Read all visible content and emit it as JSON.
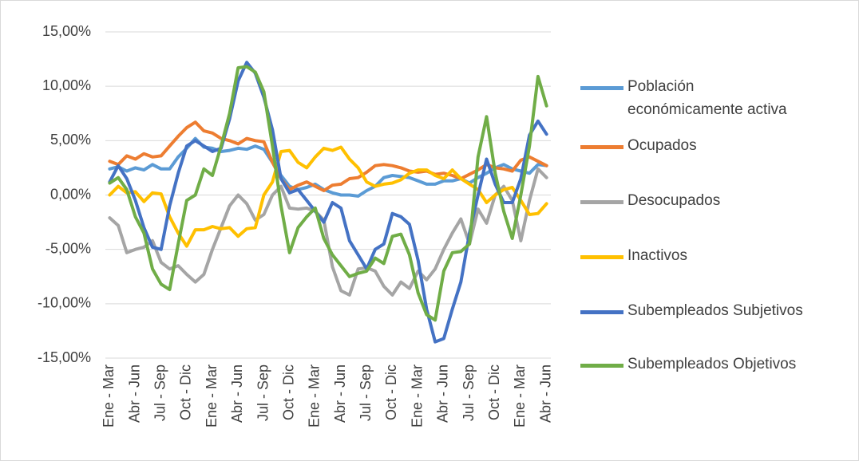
{
  "chart_data": {
    "type": "line",
    "categories": [
      "Ene - Mar",
      null,
      null,
      "Abr - Jun",
      null,
      null,
      "Jul - Sep",
      null,
      null,
      "Oct - Dic",
      null,
      null,
      "Ene - Mar",
      null,
      null,
      "Abr - Jun",
      null,
      null,
      "Jul - Sep",
      null,
      null,
      "Oct - Dic",
      null,
      null,
      "Ene - Mar",
      null,
      null,
      "Abr - Jun",
      null,
      null,
      "Jul - Sep",
      null,
      null,
      "Oct - Dic",
      null,
      null,
      "Ene - Mar",
      null,
      null,
      "Abr - Jun",
      null,
      null,
      "Jul - Sep",
      null,
      null,
      "Oct - Dic",
      null,
      null,
      "Ene - Mar",
      null,
      null,
      "Abr - Jun"
    ],
    "ylim": [
      -15,
      15
    ],
    "yticks": [
      {
        "value": -15,
        "label": "-15,00%"
      },
      {
        "value": -10,
        "label": "-10,00%"
      },
      {
        "value": -5,
        "label": "-5,00%"
      },
      {
        "value": 0,
        "label": "0,00%"
      },
      {
        "value": 5,
        "label": "5,00%"
      },
      {
        "value": 10,
        "label": "10,00%"
      },
      {
        "value": 15,
        "label": "15,00%"
      }
    ],
    "grid": true,
    "series": [
      {
        "name": "Población económicamente activa",
        "color": "#5b9bd5",
        "values": [
          2.4,
          2.6,
          2.2,
          2.5,
          2.3,
          2.8,
          2.4,
          2.4,
          3.5,
          4.3,
          5.2,
          4.4,
          4.3,
          4.0,
          4.1,
          4.3,
          4.2,
          4.5,
          4.2,
          3.0,
          1.8,
          0.8,
          0.5,
          0.7,
          1.0,
          0.5,
          0.2,
          0.0,
          0.0,
          -0.1,
          0.4,
          0.8,
          1.6,
          1.8,
          1.7,
          1.6,
          1.3,
          1.0,
          1.0,
          1.3,
          1.3,
          1.5,
          1.1,
          1.6,
          2.0,
          2.5,
          2.8,
          2.4,
          2.2,
          2.0,
          2.8,
          2.7
        ]
      },
      {
        "name": "Ocupados",
        "color": "#ed7d31",
        "values": [
          3.1,
          2.8,
          3.6,
          3.3,
          3.8,
          3.5,
          3.6,
          4.5,
          5.4,
          6.2,
          6.7,
          5.9,
          5.7,
          5.2,
          5.0,
          4.7,
          5.2,
          5.0,
          4.9,
          3.0,
          1.5,
          0.5,
          0.9,
          1.2,
          0.8,
          0.4,
          0.9,
          1.0,
          1.5,
          1.6,
          2.1,
          2.7,
          2.8,
          2.7,
          2.5,
          2.2,
          2.1,
          2.2,
          1.9,
          2.0,
          1.8,
          1.5,
          1.9,
          2.3,
          2.8,
          2.5,
          2.4,
          2.2,
          3.2,
          3.5,
          3.1,
          2.7
        ]
      },
      {
        "name": "Desocupados",
        "color": "#a5a5a5",
        "values": [
          -2.1,
          -2.8,
          -5.3,
          -5.0,
          -4.8,
          -4.2,
          -6.2,
          -6.8,
          -6.5,
          -7.3,
          -8.0,
          -7.3,
          -5.0,
          -3.0,
          -1.0,
          0.0,
          -0.8,
          -2.3,
          -1.8,
          0.0,
          0.8,
          -1.2,
          -1.3,
          -1.2,
          -1.5,
          -2.3,
          -6.6,
          -8.8,
          -9.2,
          -6.8,
          -6.7,
          -7.0,
          -8.4,
          -9.2,
          -8.0,
          -8.6,
          -7.0,
          -7.8,
          -6.8,
          -5.0,
          -3.5,
          -2.2,
          -4.5,
          -1.3,
          -2.6,
          0.0,
          0.8,
          -0.5,
          -4.2,
          -0.5,
          2.4,
          1.6
        ]
      },
      {
        "name": "Inactivos",
        "color": "#ffc000",
        "values": [
          0.0,
          0.8,
          0.2,
          0.3,
          -0.6,
          0.2,
          0.1,
          -2.0,
          -3.5,
          -4.7,
          -3.2,
          -3.2,
          -2.9,
          -3.1,
          -3.0,
          -3.8,
          -3.1,
          -3.0,
          0.0,
          1.2,
          4.0,
          4.1,
          3.0,
          2.5,
          3.5,
          4.3,
          4.1,
          4.4,
          3.3,
          2.5,
          1.2,
          0.8,
          1.0,
          1.1,
          1.4,
          2.0,
          2.3,
          2.3,
          1.8,
          1.5,
          2.3,
          1.5,
          1.0,
          0.5,
          -0.7,
          0.0,
          0.5,
          0.7,
          -0.5,
          -1.8,
          -1.7,
          -0.8
        ]
      },
      {
        "name": "Subempleados Subjetivos",
        "color": "#4472c4",
        "values": [
          1.2,
          2.7,
          1.5,
          -0.5,
          -3.0,
          -4.8,
          -5.0,
          -1.0,
          2.0,
          4.5,
          5.0,
          4.5,
          4.0,
          4.3,
          7.0,
          10.5,
          12.2,
          11.2,
          9.0,
          6.0,
          1.5,
          0.2,
          0.5,
          -0.5,
          -1.5,
          -2.5,
          -0.7,
          -1.2,
          -4.2,
          -5.5,
          -6.8,
          -5.0,
          -4.5,
          -1.7,
          -2.0,
          -2.7,
          -6.0,
          -10.5,
          -13.5,
          -13.2,
          -10.5,
          -8.0,
          -3.5,
          0.0,
          3.3,
          1.0,
          -0.7,
          -0.7,
          1.5,
          5.5,
          6.8,
          5.6
        ]
      },
      {
        "name": "Subempleados Objetivos",
        "color": "#70ad47",
        "values": [
          1.1,
          1.6,
          0.5,
          -2.0,
          -3.5,
          -6.8,
          -8.2,
          -8.7,
          -4.5,
          -0.5,
          0.0,
          2.4,
          1.8,
          4.5,
          7.5,
          11.7,
          11.8,
          11.3,
          9.5,
          4.5,
          -1.0,
          -5.3,
          -3.0,
          -2.0,
          -1.2,
          -4.0,
          -5.5,
          -6.5,
          -7.5,
          -7.2,
          -7.0,
          -5.8,
          -6.3,
          -3.8,
          -3.6,
          -5.5,
          -9.0,
          -11.0,
          -11.5,
          -7.0,
          -5.3,
          -5.2,
          -4.5,
          3.5,
          7.2,
          2.0,
          -1.5,
          -4.0,
          0.0,
          4.5,
          10.9,
          8.2
        ]
      }
    ]
  }
}
